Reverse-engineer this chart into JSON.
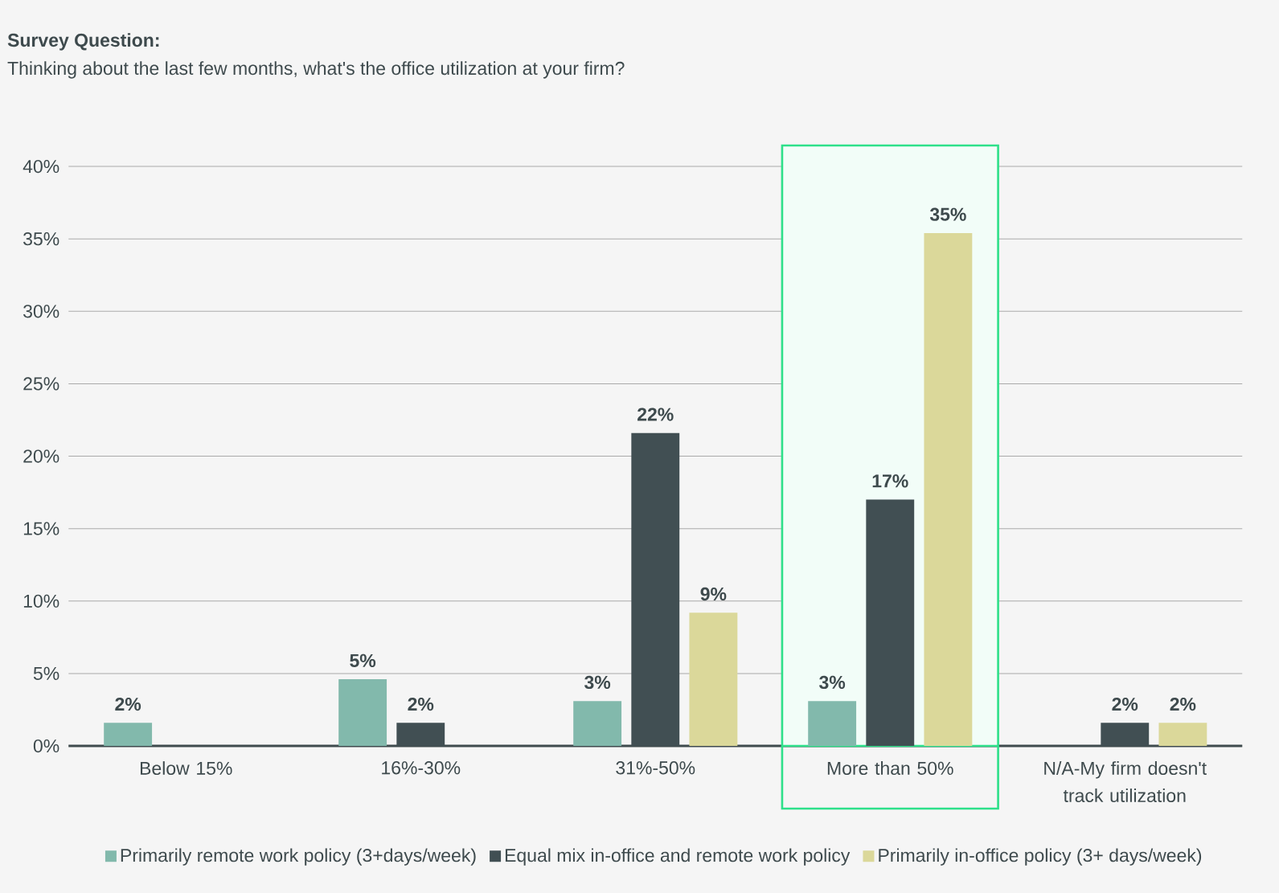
{
  "chart_data": {
    "type": "bar",
    "title": "Survey Question:",
    "subtitle": "Thinking about the last few months, what's the office utilization at your firm?",
    "categories": [
      "Below 15%",
      "16%-30%",
      "31%-50%",
      "More than 50%",
      "N/A-My firm doesn't track utilization"
    ],
    "series": [
      {
        "name": "Primarily remote work policy (3+days/week)",
        "color": "#82b9ac",
        "values": [
          1.6,
          4.6,
          3.1,
          3.1,
          null
        ],
        "value_labels": [
          "2%",
          "5%",
          "3%",
          "3%",
          null
        ]
      },
      {
        "name": "Equal mix in-office and remote work policy",
        "color": "#414f53",
        "values": [
          null,
          1.6,
          21.6,
          17,
          1.6
        ],
        "value_labels": [
          null,
          "2%",
          "22%",
          "17%",
          "2%"
        ]
      },
      {
        "name": "Primarily in-office policy (3+ days/week)",
        "color": "#dbd89a",
        "values": [
          null,
          null,
          9.2,
          35.4,
          1.6
        ],
        "value_labels": [
          null,
          null,
          "9%",
          "35%",
          "2%"
        ]
      }
    ],
    "ylim": [
      0,
      40
    ],
    "yticks": [
      {
        "value": 0,
        "label": "0%"
      },
      {
        "value": 5,
        "label": "5%"
      },
      {
        "value": 10,
        "label": "10%"
      },
      {
        "value": 15,
        "label": "15%"
      },
      {
        "value": 20,
        "label": "20%"
      },
      {
        "value": 25,
        "label": "25%"
      },
      {
        "value": 30,
        "label": "30%"
      },
      {
        "value": 35,
        "label": "35%"
      },
      {
        "value": 40,
        "label": "40%"
      }
    ],
    "bands": [
      {
        "axis": "x",
        "from": "More than 50%",
        "to": "More than 50%",
        "color": "#2ee08a"
      }
    ],
    "grid": "y",
    "legend": "bottom"
  }
}
